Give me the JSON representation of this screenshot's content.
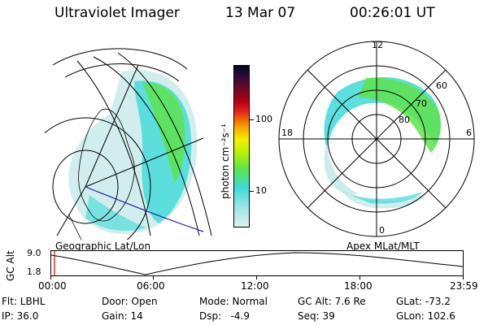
{
  "header": {
    "instrument": "Ultraviolet Imager",
    "date": "13 Mar 07",
    "time": "00:26:01 UT"
  },
  "left_panel": {
    "label": "Geographic Lat/Lon"
  },
  "colorbar": {
    "unit_label": "photon cm⁻²s⁻¹",
    "ticks": [
      "100",
      "10"
    ]
  },
  "right_panel": {
    "label": "Apex MLat/MLT",
    "mlt_labels": [
      "12",
      "18",
      "6",
      "0"
    ],
    "mlat_labels": [
      "60",
      "70",
      "80"
    ]
  },
  "altitude_plot": {
    "ylabel": "GC Alt",
    "y_ticks": [
      "9.0",
      "1.8"
    ],
    "x_ticks": [
      "00:00",
      "06:00",
      "12:00",
      "18:00",
      "23:59"
    ]
  },
  "status": {
    "flt": "Flt: LBHL",
    "door": "Door: Open",
    "mode": "Mode: Normal",
    "gc_alt": "GC Alt: 7.6 Re",
    "glat": "GLat: -73.2",
    "ip": "IP: 36.0",
    "gain": "Gain: 14",
    "dsp": "Dsp:   -4.9",
    "seq": "Seq: 39",
    "glon": "GLon: 102.6"
  },
  "colors": {
    "cyan": "#3fd9d9",
    "green": "#5fe34f",
    "blue_line": "#1a1aa8",
    "red_marker": "#d00000"
  }
}
